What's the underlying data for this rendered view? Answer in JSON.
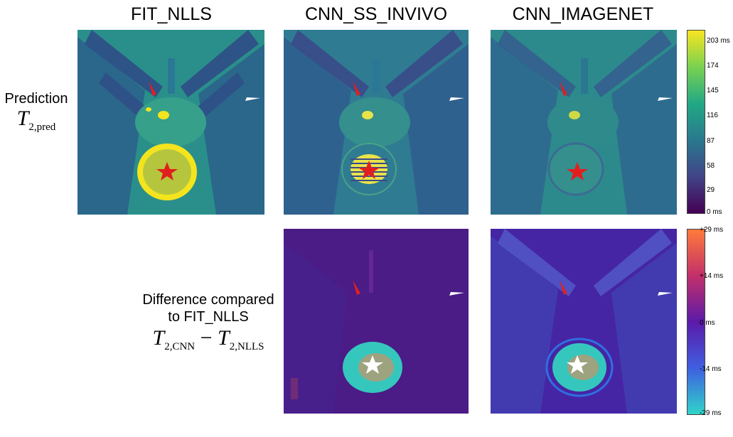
{
  "columns": {
    "fit": "FIT_NLLS",
    "cnn_ss": "CNN_SS_INVIVO",
    "cnn_imagenet": "CNN_IMAGENET"
  },
  "row_prediction": {
    "label": "Prediction",
    "math_symbol": "T",
    "math_sub": "2,pred"
  },
  "row_difference": {
    "label_line1": "Difference compared",
    "label_line2": "to  FIT_NLLS",
    "math_a": "T",
    "math_a_sub": "2,CNN",
    "math_minus": "−",
    "math_b": "T",
    "math_b_sub": "2,NLLS"
  },
  "colorbar_prediction": {
    "ticks": [
      "203 ms",
      "174",
      "145",
      "116",
      "87",
      "58",
      "29",
      "0 ms"
    ],
    "colors": [
      "#f8e621",
      "#7ad151",
      "#22a884",
      "#2a788e",
      "#414487",
      "#440154"
    ]
  },
  "colorbar_difference": {
    "ticks": [
      "+29 ms",
      "+14 ms",
      "0 ms",
      "-14 ms",
      "-29 ms"
    ],
    "colors": [
      "#ff7a3a",
      "#c2306a",
      "#5b1aa8",
      "#3f5fe0",
      "#30d4c8"
    ]
  },
  "panels": [
    {
      "name": "fit-prediction",
      "background": "#2a8f8a",
      "lesion": "#f4e41e"
    },
    {
      "name": "cnn-ss-prediction",
      "background": "#2f7c92",
      "lesion": "#e9e34a"
    },
    {
      "name": "cnn-imagenet-prediction",
      "background": "#2d8a8c",
      "lesion": "#348f8d"
    },
    {
      "name": "cnn-ss-difference",
      "background": "#4b1b86",
      "lesion": "#35c7bd"
    },
    {
      "name": "cnn-imagenet-difference",
      "background": "#4625a4",
      "lesion": "#35c7bd"
    }
  ]
}
